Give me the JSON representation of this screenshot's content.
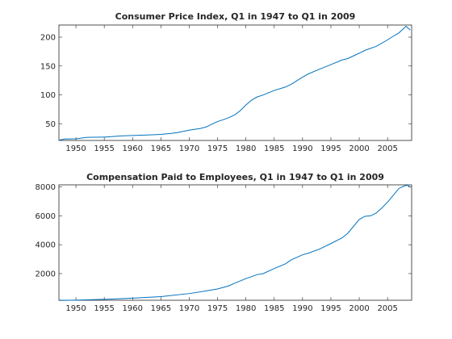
{
  "chart_data": [
    {
      "type": "line",
      "title": "Consumer Price Index, Q1 in 1947 to Q1 in 2009",
      "xlabel": "",
      "ylabel": "",
      "xlim": [
        1947,
        2009.25
      ],
      "ylim": [
        21,
        221
      ],
      "xticks": [
        1950,
        1955,
        1960,
        1965,
        1970,
        1975,
        1980,
        1985,
        1990,
        1995,
        2000,
        2005
      ],
      "yticks": [
        50,
        100,
        150,
        200
      ],
      "grid": false,
      "series_color": "#0072BD",
      "series": [
        {
          "x": [
            1947,
            1948,
            1950,
            1952,
            1955,
            1958,
            1960,
            1963,
            1965,
            1967,
            1968,
            1970,
            1972,
            1973,
            1974,
            1975,
            1976,
            1977,
            1978,
            1979,
            1980,
            1981,
            1982,
            1983,
            1985,
            1987,
            1988,
            1990,
            1991,
            1993,
            1995,
            1997,
            1998,
            2000,
            2001,
            2003,
            2005,
            2006,
            2007,
            2008.25,
            2008.6,
            2009
          ],
          "y": [
            21.5,
            23.5,
            23.8,
            26.5,
            26.8,
            28.9,
            29.6,
            30.6,
            31.5,
            33.4,
            34.8,
            38.8,
            41.8,
            44.4,
            49.3,
            53.8,
            56.9,
            60.6,
            65.2,
            72.6,
            82.4,
            90.9,
            96.5,
            99.6,
            107.6,
            113.6,
            118.3,
            130.7,
            136.2,
            144.5,
            152.4,
            160.5,
            163.0,
            172.2,
            177.1,
            184.0,
            195.3,
            201.6,
            207.3,
            218.8,
            216.0,
            212.2
          ]
        }
      ]
    },
    {
      "type": "line",
      "title": "Compensation Paid to Employees, Q1 in 1947 to Q1 in 2009",
      "xlabel": "",
      "ylabel": "",
      "xlim": [
        1947,
        2009.25
      ],
      "ylim": [
        150,
        8150
      ],
      "xticks": [
        1950,
        1955,
        1960,
        1965,
        1970,
        1975,
        1980,
        1985,
        1990,
        1995,
        2000,
        2005
      ],
      "yticks": [
        2000,
        4000,
        6000,
        8000
      ],
      "grid": false,
      "series_color": "#0072BD",
      "series": [
        {
          "x": [
            1947,
            1950,
            1955,
            1960,
            1965,
            1970,
            1973,
            1975,
            1977,
            1978,
            1980,
            1982,
            1983,
            1985,
            1987,
            1988,
            1990,
            1991,
            1993,
            1995,
            1997,
            1998,
            2000,
            2001,
            2002,
            2003,
            2004,
            2005,
            2006,
            2007,
            2008,
            2008.5,
            2009
          ],
          "y": [
            135,
            155,
            215,
            295,
            400,
            615,
            800,
            935,
            1150,
            1330,
            1650,
            1930,
            1990,
            2350,
            2680,
            2950,
            3300,
            3410,
            3700,
            4080,
            4480,
            4800,
            5750,
            5970,
            6000,
            6200,
            6550,
            6950,
            7420,
            7900,
            8080,
            8120,
            8000
          ]
        }
      ]
    }
  ]
}
